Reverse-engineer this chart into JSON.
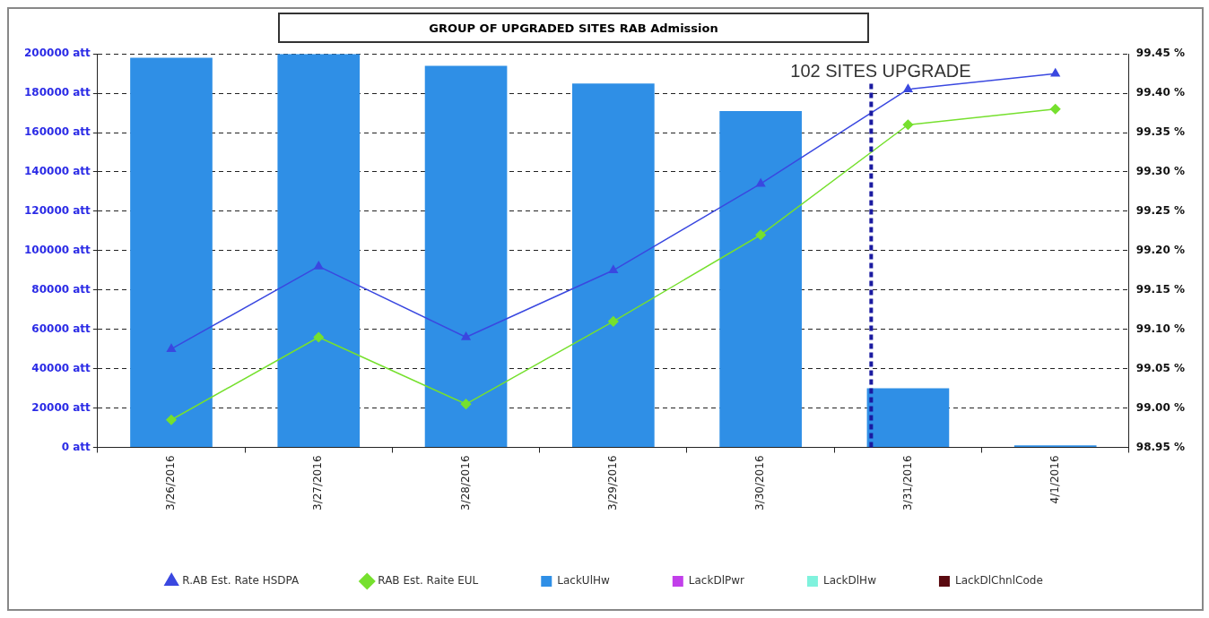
{
  "chart_data": {
    "type": "bar",
    "title": "GROUP OF UPGRADED SITES RAB Admission",
    "stacked": true,
    "categories": [
      "3/26/2016",
      "3/27/2016",
      "3/28/2016",
      "3/29/2016",
      "3/30/2016",
      "3/31/2016",
      "4/1/2016"
    ],
    "series": [
      {
        "name": "LackUlHw",
        "color": "#2f8fe6",
        "values": [
          198000,
          200000,
          194000,
          185000,
          171000,
          30000,
          1000
        ]
      },
      {
        "name": "LackDlPwr",
        "color": "#c23fea",
        "values": [
          0,
          0,
          0,
          0,
          0,
          0,
          0
        ]
      },
      {
        "name": "LackDlHw",
        "color": "#7ff2dd",
        "values": [
          0,
          0,
          0,
          0,
          0,
          0,
          0
        ]
      },
      {
        "name": "LackDlChnlCode",
        "color": "#5a0a10",
        "values": [
          0,
          0,
          0,
          0,
          0,
          0,
          0
        ]
      },
      {
        "name": "R.AB Est. Rate HSDPA",
        "type": "line",
        "axis": "y2",
        "marker": "triangle",
        "color": "#3a48e0",
        "values": [
          99.075,
          99.18,
          99.09,
          99.175,
          99.285,
          99.405,
          99.425
        ]
      },
      {
        "name": "RAB Est. Raite EUL",
        "type": "line",
        "axis": "y2",
        "marker": "diamond",
        "color": "#76e02e",
        "values": [
          98.985,
          99.09,
          99.005,
          99.11,
          99.22,
          99.36,
          99.38
        ]
      }
    ],
    "ylim": [
      0,
      200000
    ],
    "yticks": [
      {
        "value": 0,
        "label": "0 att"
      },
      {
        "value": 20000,
        "label": "20000 att"
      },
      {
        "value": 40000,
        "label": "40000 att"
      },
      {
        "value": 60000,
        "label": "60000 att"
      },
      {
        "value": 80000,
        "label": "80000 att"
      },
      {
        "value": 100000,
        "label": "100000 att"
      },
      {
        "value": 120000,
        "label": "120000 att"
      },
      {
        "value": 140000,
        "label": "140000 att"
      },
      {
        "value": 160000,
        "label": "160000 att"
      },
      {
        "value": 180000,
        "label": "180000 att"
      },
      {
        "value": 200000,
        "label": "200000 att"
      }
    ],
    "y2lim": [
      98.95,
      99.45
    ],
    "y2ticks": [
      {
        "value": 98.95,
        "label": "98.95 %"
      },
      {
        "value": 99.0,
        "label": "99.00 %"
      },
      {
        "value": 99.05,
        "label": "99.05 %"
      },
      {
        "value": 99.1,
        "label": "99.10 %"
      },
      {
        "value": 99.15,
        "label": "99.15 %"
      },
      {
        "value": 99.2,
        "label": "99.20 %"
      },
      {
        "value": 99.25,
        "label": "99.25 %"
      },
      {
        "value": 99.3,
        "label": "99.30 %"
      },
      {
        "value": 99.35,
        "label": "99.35 %"
      },
      {
        "value": 99.4,
        "label": "99.40 %"
      },
      {
        "value": 99.45,
        "label": "99.45 %"
      }
    ],
    "ref_lines": [
      {
        "axis": "x",
        "value": "3/31/2016",
        "label": "102 SITES UPGRADE",
        "color": "#1a1aa0",
        "line_style": "dashed"
      }
    ],
    "grid": true,
    "legend": "bottom",
    "line_style": "solid"
  }
}
